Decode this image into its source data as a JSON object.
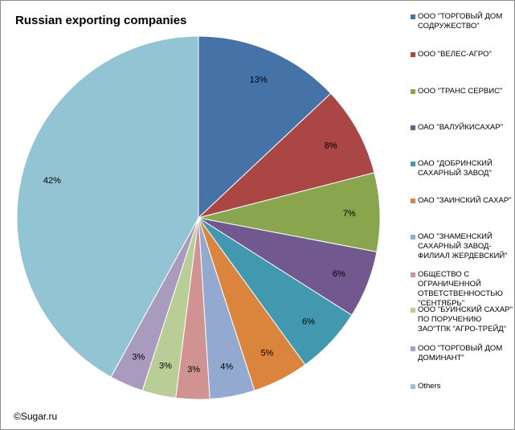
{
  "chart_data": {
    "type": "pie",
    "title": "Russian exporting companies",
    "slices": [
      {
        "label": "ООО \"ТОРГОВЫЙ ДОМ СОДРУЖЕСТВО\"",
        "value": 13,
        "value_label": "13%",
        "color": "#4572a7"
      },
      {
        "label": "ООО \"ВЕЛЕС-АГРО\"",
        "value": 8,
        "value_label": "8%",
        "color": "#aa4643"
      },
      {
        "label": "ООО \"ТРАНС СЕРВИС\"",
        "value": 7,
        "value_label": "7%",
        "color": "#89a54e"
      },
      {
        "label": "ОАО \"ВАЛУЙКИСАХАР\"",
        "value": 6,
        "value_label": "6%",
        "color": "#71588f"
      },
      {
        "label": "ОАО \"ДОБРИНСКИЙ САХАРНЫЙ ЗАВОД\"",
        "value": 6,
        "value_label": "6%",
        "color": "#4198af"
      },
      {
        "label": "ОАО \"ЗАИНСКИЙ САХАР\"",
        "value": 5,
        "value_label": "5%",
        "color": "#db843d"
      },
      {
        "label": "ОАО \"ЗНАМЕНСКИЙ САХАРНЫЙ ЗАВОД-ФИЛИАЛ ЖЕРДЕВСКИЙ\"",
        "value": 4,
        "value_label": "4%",
        "color": "#93a9cf"
      },
      {
        "label": "ОБЩЕСТВО С ОГРАНИЧЕННОЙ ОТВЕТСТВЕННОСТЬЮ \"СЕНТЯБРЬ\"",
        "value": 3,
        "value_label": "3%",
        "color": "#d19392"
      },
      {
        "label": "ООО \"БУИНСКИЙ САХАР\" ПО ПОРУЧЕНИЮ ЗАО\"ТПК \"АГРО-ТРЕЙД\"",
        "value": 3,
        "value_label": "3%",
        "color": "#b9cd96"
      },
      {
        "label": "ООО \"ТОРГОВЫЙ ДОМ ДОМИНАНТ\"",
        "value": 3,
        "value_label": "3%",
        "color": "#a99bbd"
      },
      {
        "label": "Others",
        "value": 42,
        "value_label": "42%",
        "color": "#92c4d4"
      }
    ],
    "start_angle_deg": 0,
    "direction": "clockwise",
    "legend_position": "right"
  },
  "footer": {
    "copyright": "©Sugar.ru"
  }
}
